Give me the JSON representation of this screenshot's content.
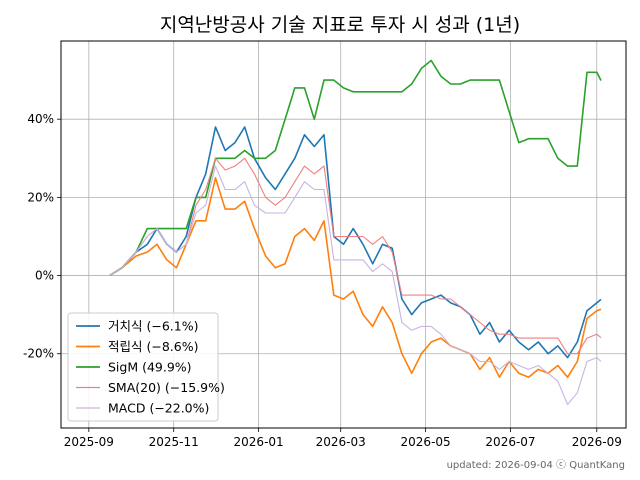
{
  "chart_data": {
    "type": "line",
    "title": "지역난방공사 기술 지표로 투자 시 성과 (1년)",
    "xlabel": "",
    "ylabel": "",
    "x_ticks": [
      "2025-09",
      "2025-11",
      "2026-01",
      "2026-03",
      "2026-05",
      "2026-07",
      "2026-09"
    ],
    "y_ticks": [
      "-20%",
      "0%",
      "20%",
      "40%"
    ],
    "ylim": [
      -39,
      60
    ],
    "xlim": [
      "2025-08-12",
      "2026-09-22"
    ],
    "grid": true,
    "legend_position": "lower-left",
    "series": [
      {
        "name": "거치식 (−6.1%)",
        "color": "#1f77b4",
        "points": [
          [
            "2025-09-16",
            0
          ],
          [
            "2025-09-25",
            2
          ],
          [
            "2025-10-05",
            6
          ],
          [
            "2025-10-13",
            8
          ],
          [
            "2025-10-20",
            12
          ],
          [
            "2025-10-27",
            8
          ],
          [
            "2025-11-03",
            6
          ],
          [
            "2025-11-10",
            10
          ],
          [
            "2025-11-17",
            20
          ],
          [
            "2025-11-24",
            26
          ],
          [
            "2025-12-01",
            38
          ],
          [
            "2025-12-08",
            32
          ],
          [
            "2025-12-15",
            34
          ],
          [
            "2025-12-22",
            38
          ],
          [
            "2025-12-29",
            30
          ],
          [
            "2026-01-06",
            25
          ],
          [
            "2026-01-13",
            22
          ],
          [
            "2026-01-20",
            26
          ],
          [
            "2026-01-27",
            30
          ],
          [
            "2026-02-03",
            36
          ],
          [
            "2026-02-10",
            33
          ],
          [
            "2026-02-17",
            36
          ],
          [
            "2026-02-24",
            10
          ],
          [
            "2026-03-03",
            8
          ],
          [
            "2026-03-10",
            12
          ],
          [
            "2026-03-17",
            8
          ],
          [
            "2026-03-24",
            3
          ],
          [
            "2026-03-31",
            8
          ],
          [
            "2026-04-07",
            7
          ],
          [
            "2026-04-14",
            -6
          ],
          [
            "2026-04-21",
            -10
          ],
          [
            "2026-04-28",
            -7
          ],
          [
            "2026-05-05",
            -6
          ],
          [
            "2026-05-12",
            -5
          ],
          [
            "2026-05-19",
            -7
          ],
          [
            "2026-05-26",
            -8
          ],
          [
            "2026-06-02",
            -10
          ],
          [
            "2026-06-09",
            -15
          ],
          [
            "2026-06-16",
            -12
          ],
          [
            "2026-06-23",
            -17
          ],
          [
            "2026-06-30",
            -14
          ],
          [
            "2026-07-07",
            -17
          ],
          [
            "2026-07-14",
            -19
          ],
          [
            "2026-07-21",
            -17
          ],
          [
            "2026-07-28",
            -20
          ],
          [
            "2026-08-04",
            -18
          ],
          [
            "2026-08-11",
            -21
          ],
          [
            "2026-08-18",
            -17
          ],
          [
            "2026-08-25",
            -9
          ],
          [
            "2026-09-01",
            -7
          ],
          [
            "2026-09-04",
            -6.1
          ]
        ]
      },
      {
        "name": "적립식 (−8.6%)",
        "color": "#ff7f0e",
        "points": [
          [
            "2025-09-16",
            0
          ],
          [
            "2025-09-25",
            2
          ],
          [
            "2025-10-05",
            5
          ],
          [
            "2025-10-13",
            6
          ],
          [
            "2025-10-20",
            8
          ],
          [
            "2025-10-27",
            4
          ],
          [
            "2025-11-03",
            2
          ],
          [
            "2025-11-10",
            8
          ],
          [
            "2025-11-17",
            14
          ],
          [
            "2025-11-24",
            14
          ],
          [
            "2025-12-01",
            25
          ],
          [
            "2025-12-08",
            17
          ],
          [
            "2025-12-15",
            17
          ],
          [
            "2025-12-22",
            19
          ],
          [
            "2025-12-29",
            12
          ],
          [
            "2026-01-06",
            5
          ],
          [
            "2026-01-13",
            2
          ],
          [
            "2026-01-20",
            3
          ],
          [
            "2026-01-27",
            10
          ],
          [
            "2026-02-03",
            12
          ],
          [
            "2026-02-10",
            9
          ],
          [
            "2026-02-17",
            14
          ],
          [
            "2026-02-24",
            -5
          ],
          [
            "2026-03-03",
            -6
          ],
          [
            "2026-03-10",
            -4
          ],
          [
            "2026-03-17",
            -10
          ],
          [
            "2026-03-24",
            -13
          ],
          [
            "2026-03-31",
            -8
          ],
          [
            "2026-04-07",
            -12
          ],
          [
            "2026-04-14",
            -20
          ],
          [
            "2026-04-21",
            -25
          ],
          [
            "2026-04-28",
            -20
          ],
          [
            "2026-05-05",
            -17
          ],
          [
            "2026-05-12",
            -16
          ],
          [
            "2026-05-19",
            -18
          ],
          [
            "2026-05-26",
            -19
          ],
          [
            "2026-06-02",
            -20
          ],
          [
            "2026-06-09",
            -24
          ],
          [
            "2026-06-16",
            -21
          ],
          [
            "2026-06-23",
            -26
          ],
          [
            "2026-06-30",
            -22
          ],
          [
            "2026-07-07",
            -25
          ],
          [
            "2026-07-14",
            -26
          ],
          [
            "2026-07-21",
            -24
          ],
          [
            "2026-07-28",
            -25
          ],
          [
            "2026-08-04",
            -23
          ],
          [
            "2026-08-11",
            -26
          ],
          [
            "2026-08-18",
            -22
          ],
          [
            "2026-08-25",
            -11
          ],
          [
            "2026-09-01",
            -9
          ],
          [
            "2026-09-04",
            -8.6
          ]
        ]
      },
      {
        "name": "SigM (49.9%)",
        "color": "#2ca02c",
        "points": [
          [
            "2025-09-16",
            0
          ],
          [
            "2025-09-25",
            2
          ],
          [
            "2025-10-05",
            6
          ],
          [
            "2025-10-13",
            12
          ],
          [
            "2025-10-20",
            12
          ],
          [
            "2025-10-27",
            12
          ],
          [
            "2025-11-03",
            12
          ],
          [
            "2025-11-10",
            12
          ],
          [
            "2025-11-17",
            20
          ],
          [
            "2025-11-24",
            20
          ],
          [
            "2025-12-01",
            30
          ],
          [
            "2025-12-08",
            30
          ],
          [
            "2025-12-15",
            30
          ],
          [
            "2025-12-22",
            32
          ],
          [
            "2025-12-29",
            30
          ],
          [
            "2026-01-06",
            30
          ],
          [
            "2026-01-13",
            32
          ],
          [
            "2026-01-20",
            40
          ],
          [
            "2026-01-27",
            48
          ],
          [
            "2026-02-03",
            48
          ],
          [
            "2026-02-10",
            40
          ],
          [
            "2026-02-17",
            50
          ],
          [
            "2026-02-24",
            50
          ],
          [
            "2026-03-03",
            48
          ],
          [
            "2026-03-10",
            47
          ],
          [
            "2026-03-17",
            47
          ],
          [
            "2026-03-24",
            47
          ],
          [
            "2026-03-31",
            47
          ],
          [
            "2026-04-07",
            47
          ],
          [
            "2026-04-14",
            47
          ],
          [
            "2026-04-21",
            49
          ],
          [
            "2026-04-28",
            53
          ],
          [
            "2026-05-05",
            55
          ],
          [
            "2026-05-12",
            51
          ],
          [
            "2026-05-19",
            49
          ],
          [
            "2026-05-26",
            49
          ],
          [
            "2026-06-02",
            50
          ],
          [
            "2026-06-09",
            50
          ],
          [
            "2026-06-16",
            50
          ],
          [
            "2026-06-23",
            50
          ],
          [
            "2026-06-30",
            42
          ],
          [
            "2026-07-07",
            34
          ],
          [
            "2026-07-14",
            35
          ],
          [
            "2026-07-21",
            35
          ],
          [
            "2026-07-28",
            35
          ],
          [
            "2026-08-04",
            30
          ],
          [
            "2026-08-11",
            28
          ],
          [
            "2026-08-18",
            28
          ],
          [
            "2026-08-25",
            52
          ],
          [
            "2026-09-01",
            52
          ],
          [
            "2026-09-04",
            49.9
          ]
        ]
      },
      {
        "name": "SMA(20) (−15.9%)",
        "color": "#f08080",
        "points": [
          [
            "2025-09-16",
            0
          ],
          [
            "2025-09-25",
            2
          ],
          [
            "2025-10-05",
            6
          ],
          [
            "2025-10-13",
            10
          ],
          [
            "2025-10-20",
            12
          ],
          [
            "2025-10-27",
            8
          ],
          [
            "2025-11-03",
            6
          ],
          [
            "2025-11-10",
            8
          ],
          [
            "2025-11-17",
            18
          ],
          [
            "2025-11-24",
            22
          ],
          [
            "2025-12-01",
            30
          ],
          [
            "2025-12-08",
            27
          ],
          [
            "2025-12-15",
            28
          ],
          [
            "2025-12-22",
            30
          ],
          [
            "2025-12-29",
            26
          ],
          [
            "2026-01-06",
            20
          ],
          [
            "2026-01-13",
            18
          ],
          [
            "2026-01-20",
            20
          ],
          [
            "2026-01-27",
            24
          ],
          [
            "2026-02-03",
            28
          ],
          [
            "2026-02-10",
            26
          ],
          [
            "2026-02-17",
            28
          ],
          [
            "2026-02-24",
            10
          ],
          [
            "2026-03-03",
            10
          ],
          [
            "2026-03-10",
            10
          ],
          [
            "2026-03-17",
            10
          ],
          [
            "2026-03-24",
            8
          ],
          [
            "2026-03-31",
            10
          ],
          [
            "2026-04-07",
            6
          ],
          [
            "2026-04-14",
            -5
          ],
          [
            "2026-04-21",
            -5
          ],
          [
            "2026-04-28",
            -5
          ],
          [
            "2026-05-05",
            -5
          ],
          [
            "2026-05-12",
            -6
          ],
          [
            "2026-05-19",
            -6
          ],
          [
            "2026-05-26",
            -8
          ],
          [
            "2026-06-02",
            -10
          ],
          [
            "2026-06-09",
            -12
          ],
          [
            "2026-06-16",
            -14
          ],
          [
            "2026-06-23",
            -15
          ],
          [
            "2026-06-30",
            -15
          ],
          [
            "2026-07-07",
            -16
          ],
          [
            "2026-07-14",
            -16
          ],
          [
            "2026-07-21",
            -16
          ],
          [
            "2026-07-28",
            -16
          ],
          [
            "2026-08-04",
            -16
          ],
          [
            "2026-08-11",
            -20
          ],
          [
            "2026-08-18",
            -20
          ],
          [
            "2026-08-25",
            -16
          ],
          [
            "2026-09-01",
            -15
          ],
          [
            "2026-09-04",
            -15.9
          ]
        ]
      },
      {
        "name": "MACD (−22.0%)",
        "color": "#c9b3e0",
        "points": [
          [
            "2025-09-16",
            0
          ],
          [
            "2025-09-25",
            2
          ],
          [
            "2025-10-05",
            6
          ],
          [
            "2025-10-13",
            10
          ],
          [
            "2025-10-20",
            12
          ],
          [
            "2025-10-27",
            8
          ],
          [
            "2025-11-03",
            6
          ],
          [
            "2025-11-10",
            8
          ],
          [
            "2025-11-17",
            16
          ],
          [
            "2025-11-24",
            18
          ],
          [
            "2025-12-01",
            28
          ],
          [
            "2025-12-08",
            22
          ],
          [
            "2025-12-15",
            22
          ],
          [
            "2025-12-22",
            24
          ],
          [
            "2025-12-29",
            18
          ],
          [
            "2026-01-06",
            16
          ],
          [
            "2026-01-13",
            16
          ],
          [
            "2026-01-20",
            16
          ],
          [
            "2026-01-27",
            20
          ],
          [
            "2026-02-03",
            24
          ],
          [
            "2026-02-10",
            22
          ],
          [
            "2026-02-17",
            22
          ],
          [
            "2026-02-24",
            4
          ],
          [
            "2026-03-03",
            4
          ],
          [
            "2026-03-10",
            4
          ],
          [
            "2026-03-17",
            4
          ],
          [
            "2026-03-24",
            1
          ],
          [
            "2026-03-31",
            3
          ],
          [
            "2026-04-07",
            1
          ],
          [
            "2026-04-14",
            -12
          ],
          [
            "2026-04-21",
            -14
          ],
          [
            "2026-04-28",
            -13
          ],
          [
            "2026-05-05",
            -13
          ],
          [
            "2026-05-12",
            -15
          ],
          [
            "2026-05-19",
            -18
          ],
          [
            "2026-05-26",
            -19
          ],
          [
            "2026-06-02",
            -20
          ],
          [
            "2026-06-09",
            -22
          ],
          [
            "2026-06-16",
            -22
          ],
          [
            "2026-06-23",
            -24
          ],
          [
            "2026-06-30",
            -22
          ],
          [
            "2026-07-07",
            -23
          ],
          [
            "2026-07-14",
            -24
          ],
          [
            "2026-07-21",
            -23
          ],
          [
            "2026-07-28",
            -25
          ],
          [
            "2026-08-04",
            -27
          ],
          [
            "2026-08-11",
            -33
          ],
          [
            "2026-08-18",
            -30
          ],
          [
            "2026-08-25",
            -22
          ],
          [
            "2026-09-01",
            -21
          ],
          [
            "2026-09-04",
            -22.0
          ]
        ]
      }
    ],
    "footer": "updated: 2026-09-04 ⓒ QuantKang"
  },
  "colors": {
    "grid": "#b0b0b0",
    "axis": "#000000"
  }
}
